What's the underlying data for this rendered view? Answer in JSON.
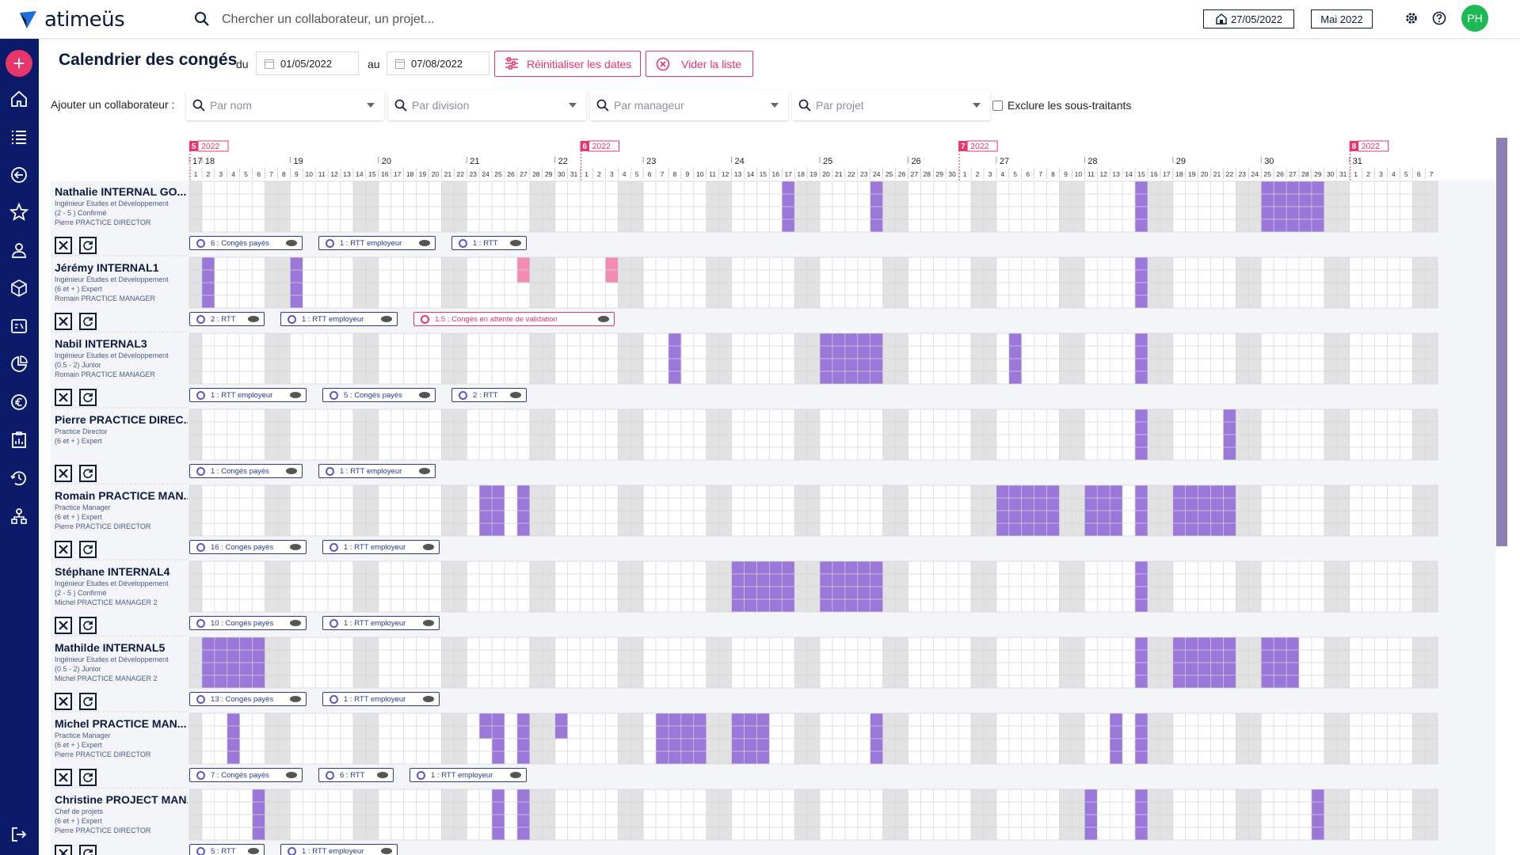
{
  "app": {
    "name": "atimeüs"
  },
  "topbar": {
    "search_placeholder": "Chercher un collaborateur, un projet...",
    "date": "27/05/2022",
    "month": "Mai 2022",
    "avatar": "PH"
  },
  "page": {
    "title": "Calendrier des congés",
    "du": "du",
    "au": "au",
    "start": "01/05/2022",
    "end": "07/08/2022",
    "reset_label": "Réinitialiser les dates",
    "clear_label": "Vider la liste",
    "add_label": "Ajouter un collaborateur :",
    "filters": [
      "Par nom",
      "Par division",
      "Par manageur",
      "Par projet"
    ],
    "exclude_label": "Exclure les sous-traitants"
  },
  "calendar": {
    "colors": {
      "leave": "#9a77d8",
      "pending": "#f28cb1",
      "weekend": "#e2e2e2",
      "grid": "#d4d4de"
    },
    "months": [
      {
        "num": "5",
        "year": "2022",
        "startCol": 0
      },
      {
        "num": "6",
        "year": "2022",
        "startCol": 31
      },
      {
        "num": "7",
        "year": "2022",
        "startCol": 61
      },
      {
        "num": "8",
        "year": "2022",
        "startCol": 92
      }
    ],
    "weeks": [
      {
        "label": "17",
        "col": 0
      },
      {
        "label": "18",
        "col": 1
      },
      {
        "label": "19",
        "col": 8
      },
      {
        "label": "20",
        "col": 15
      },
      {
        "label": "21",
        "col": 22
      },
      {
        "label": "22",
        "col": 29
      },
      {
        "label": "23",
        "col": 36
      },
      {
        "label": "24",
        "col": 43
      },
      {
        "label": "25",
        "col": 50
      },
      {
        "label": "26",
        "col": 57
      },
      {
        "label": "27",
        "col": 64
      },
      {
        "label": "28",
        "col": 71
      },
      {
        "label": "29",
        "col": 78
      },
      {
        "label": "30",
        "col": 85
      },
      {
        "label": "31",
        "col": 92
      }
    ],
    "days": [
      "1",
      "2",
      "3",
      "4",
      "5",
      "6",
      "7",
      "8",
      "9",
      "10",
      "11",
      "12",
      "13",
      "14",
      "15",
      "16",
      "17",
      "18",
      "19",
      "20",
      "21",
      "22",
      "23",
      "24",
      "25",
      "26",
      "27",
      "28",
      "29",
      "30",
      "31",
      "1",
      "2",
      "3",
      "4",
      "5",
      "6",
      "7",
      "8",
      "9",
      "10",
      "11",
      "12",
      "13",
      "14",
      "15",
      "16",
      "17",
      "18",
      "19",
      "20",
      "21",
      "22",
      "23",
      "24",
      "25",
      "26",
      "27",
      "28",
      "29",
      "30",
      "1",
      "2",
      "3",
      "4",
      "5",
      "6",
      "7",
      "8",
      "9",
      "10",
      "11",
      "12",
      "13",
      "14",
      "15",
      "16",
      "17",
      "18",
      "19",
      "20",
      "21",
      "22",
      "23",
      "24",
      "25",
      "26",
      "27",
      "28",
      "29",
      "30",
      "31",
      "1",
      "2",
      "3",
      "4",
      "5",
      "6",
      "7"
    ]
  },
  "employees": [
    {
      "name": "Nathalie INTERNAL GO...",
      "role": "Ingénieur Etudes et Développement",
      "level": "(2 - 5 ) Confirmé",
      "manager": "Pierre PRACTICE DIRECTOR",
      "full": [
        47,
        54,
        75,
        85,
        86,
        87,
        88,
        89
      ],
      "pending": [],
      "half": [],
      "pills": [
        {
          "text": "6 : Congés payés",
          "pink": false
        },
        {
          "text": "1 : RTT employeur",
          "pink": false
        },
        {
          "text": "1 : RTT",
          "pink": false
        }
      ]
    },
    {
      "name": "Jérémy INTERNAL1",
      "role": "Ingénieur Etudes et Développement",
      "level": "(6 et + ) Expert",
      "manager": "Romain PRACTICE MANAGER",
      "full": [
        1,
        8,
        75
      ],
      "pending": [
        26,
        33
      ],
      "half": [],
      "pills": [
        {
          "text": "2 : RTT",
          "pink": false
        },
        {
          "text": "1 : RTT employeur",
          "pink": false
        },
        {
          "text": "1.5 : Congés en attente de validation",
          "pink": true
        }
      ]
    },
    {
      "name": "Nabil INTERNAL3",
      "role": "Ingénieur Etudes et Développement",
      "level": "(0.5 - 2) Junior",
      "manager": "Romain PRACTICE MANAGER",
      "full": [
        38,
        50,
        51,
        52,
        53,
        54,
        65,
        75
      ],
      "pending": [],
      "half": [],
      "pills": [
        {
          "text": "1 : RTT employeur",
          "pink": false
        },
        {
          "text": "5 : Congés payés",
          "pink": false
        },
        {
          "text": "2 : RTT",
          "pink": false
        }
      ]
    },
    {
      "name": "Pierre PRACTICE DIREC...",
      "role": "Practice Director",
      "level": "(6 et + ) Expert",
      "manager": "",
      "full": [
        75,
        82
      ],
      "pending": [],
      "half": [],
      "pills": [
        {
          "text": "1 : Congés payés",
          "pink": false
        },
        {
          "text": "1 : RTT employeur",
          "pink": false
        }
      ]
    },
    {
      "name": "Romain PRACTICE MAN...",
      "role": "Practice Manager",
      "level": "(6 et + ) Expert",
      "manager": "Pierre PRACTICE DIRECTOR",
      "full": [
        23,
        24,
        26,
        64,
        65,
        66,
        67,
        68,
        71,
        72,
        73,
        75,
        78,
        79,
        80,
        81,
        82
      ],
      "pending": [],
      "half": [],
      "pills": [
        {
          "text": "16 : Congés payés",
          "pink": false
        },
        {
          "text": "1 : RTT employeur",
          "pink": false
        }
      ]
    },
    {
      "name": "Stéphane INTERNAL4",
      "role": "Ingénieur Etudes et Développement",
      "level": "(2 - 5 ) Confirmé",
      "manager": "Michel PRACTICE MANAGER 2",
      "full": [
        43,
        44,
        45,
        46,
        47,
        50,
        51,
        52,
        53,
        54,
        75
      ],
      "pending": [],
      "half": [],
      "pills": [
        {
          "text": "10 : Congés payés",
          "pink": false
        },
        {
          "text": "1 : RTT employeur",
          "pink": false
        }
      ]
    },
    {
      "name": "Mathilde INTERNAL5",
      "role": "Ingénieur Etudes et Développement",
      "level": "(0.5 - 2) Junior",
      "manager": "Michel PRACTICE MANAGER 2",
      "full": [
        1,
        2,
        3,
        4,
        5,
        75,
        78,
        79,
        80,
        81,
        82,
        85,
        86,
        87
      ],
      "pending": [],
      "half": [],
      "pills": [
        {
          "text": "13 : Congés payés",
          "pink": false
        },
        {
          "text": "1 : RTT employeur",
          "pink": false
        }
      ]
    },
    {
      "name": "Michel PRACTICE MAN...",
      "role": "Practice Manager",
      "level": "(6 et + ) Expert",
      "manager": "Pierre PRACTICE DIRECTOR",
      "full": [
        3,
        24,
        26,
        37,
        38,
        39,
        40,
        43,
        44,
        45,
        54,
        73,
        75
      ],
      "pending": [],
      "half": [
        23,
        29
      ],
      "pills": [
        {
          "text": "7 : Congés payés",
          "pink": false
        },
        {
          "text": "6 : RTT",
          "pink": false
        },
        {
          "text": "1 : RTT employeur",
          "pink": false
        }
      ]
    },
    {
      "name": "Christine PROJECT MAN...",
      "role": "Chef de projets",
      "level": "(6 et + ) Expert",
      "manager": "Pierre PRACTICE DIRECTOR",
      "full": [
        5,
        24,
        26,
        71,
        75,
        89
      ],
      "pending": [],
      "half": [],
      "pills": [
        {
          "text": "5 : RTT",
          "pink": false
        },
        {
          "text": "1 : RTT employeur",
          "pink": false
        }
      ]
    }
  ]
}
